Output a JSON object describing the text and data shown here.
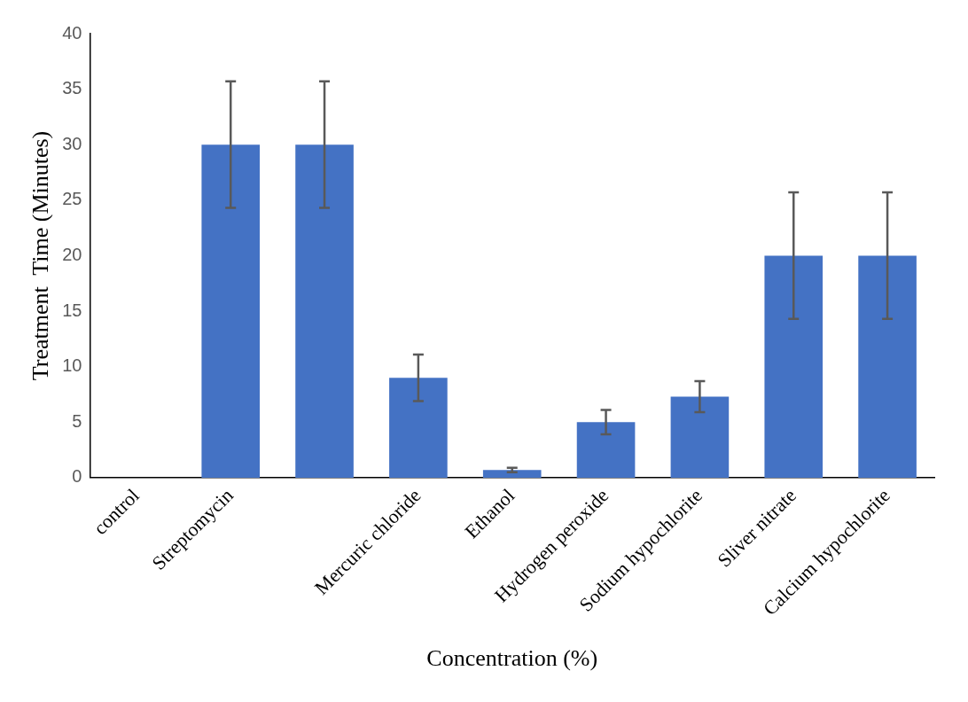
{
  "chart_data": {
    "type": "bar",
    "xlabel": "Concentration (%)",
    "ylabel": "Treatment  Time (Minutes)",
    "categories": [
      "control",
      "Streptomycin",
      null,
      "Mercuric chloride",
      "Ethanol",
      "Hydrogen peroxide",
      "Sodium hypochlorite",
      "Sliver nitrate",
      "Calcium hypochlorite"
    ],
    "values": [
      0,
      30,
      30,
      9,
      0.7,
      5,
      7.3,
      20,
      20
    ],
    "errors": [
      null,
      5.7,
      5.7,
      2.1,
      0.2,
      1.1,
      1.4,
      5.7,
      5.7
    ],
    "color": "#4472c4",
    "ylim": [
      0,
      40
    ],
    "yticks": [
      0,
      5,
      10,
      15,
      20,
      25,
      30,
      35,
      40
    ],
    "grid": false,
    "legend": false
  }
}
